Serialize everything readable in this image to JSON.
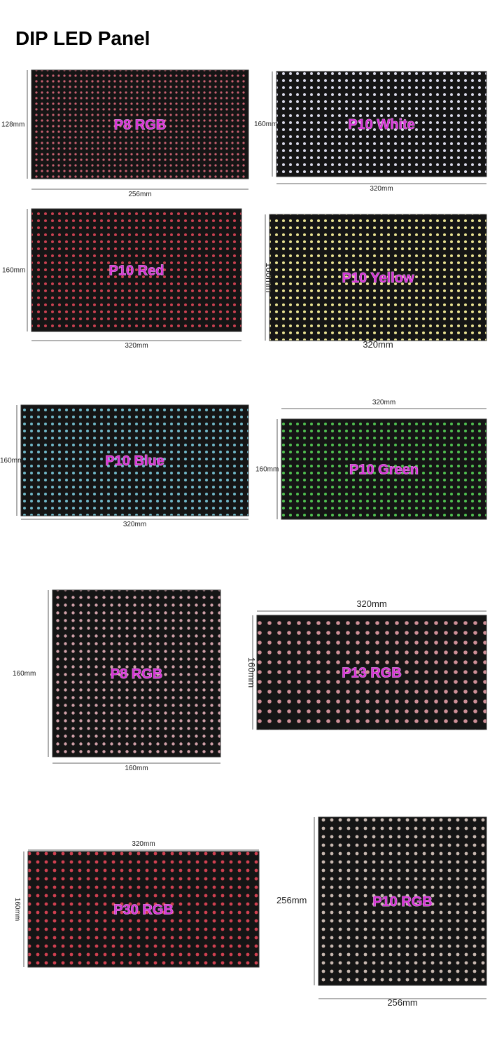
{
  "header": {
    "title": "DIP LED Panel"
  },
  "panels": [
    {
      "label": "P8 RGB",
      "width": "256mm",
      "height": "128mm",
      "led_color": "#c86070"
    },
    {
      "label": "P10 White",
      "width": "320mm",
      "height": "160mm",
      "led_color": "#d8d8e8"
    },
    {
      "label": "P10 Red",
      "width": "320mm",
      "height": "160mm",
      "led_color": "#c84050"
    },
    {
      "label": "P10 Yellow",
      "width": "320mm",
      "height": "160mm",
      "led_color": "#e8e090"
    },
    {
      "label": "P10 Blue",
      "width": "320mm",
      "height": "160mm",
      "led_color": "#70b8c8"
    },
    {
      "label": "P10 Green",
      "width": "320mm",
      "height": "160mm",
      "led_color": "#50c050"
    },
    {
      "label": "P8 RGB",
      "width": "160mm",
      "height": "160mm",
      "led_color": "#d0a0a8"
    },
    {
      "label": "P13 RGB",
      "width": "320mm",
      "height": "160mm",
      "led_color": "#d09098"
    },
    {
      "label": "P30 RGB",
      "width": "320mm",
      "height": "160mm",
      "led_color": "#d04050"
    },
    {
      "label": "P10 RGB",
      "width": "256mm",
      "height": "256mm",
      "led_color": "#c8b8b0"
    }
  ]
}
